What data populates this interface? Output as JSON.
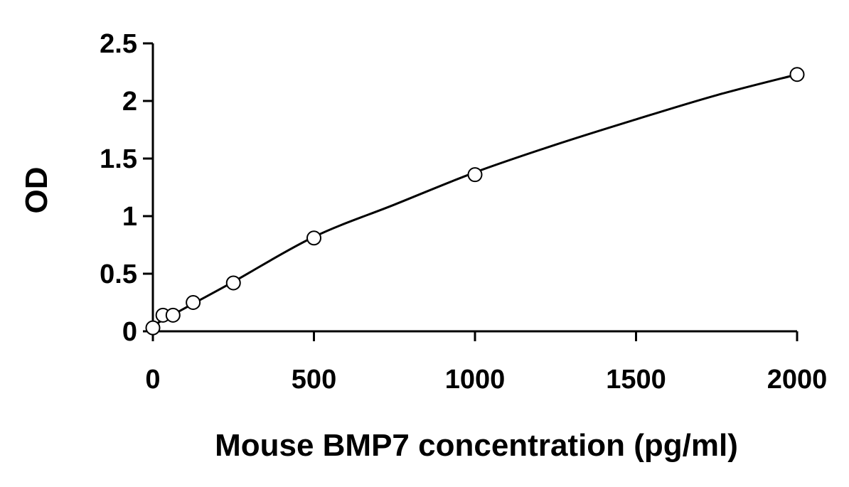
{
  "chart_data": {
    "type": "scatter",
    "title": "",
    "xlabel": "Mouse BMP7 concentration (pg/ml)",
    "ylabel": "OD",
    "xlim": [
      0,
      2000
    ],
    "ylim": [
      0,
      2.5
    ],
    "x_ticks": [
      "0",
      "500",
      "1000",
      "1500",
      "2000"
    ],
    "y_ticks": [
      "0",
      "0.5",
      "1",
      "1.5",
      "2",
      "2.5"
    ],
    "grid": false,
    "legend": "none",
    "series": [
      {
        "marker": "open-circle",
        "x": [
          0,
          31.25,
          62.5,
          125,
          250,
          500,
          1000,
          2000
        ],
        "y": [
          0.03,
          0.14,
          0.14,
          0.25,
          0.42,
          0.81,
          1.36,
          2.23
        ]
      }
    ],
    "fit_curve": {
      "style": "smooth-line",
      "color": "#000000",
      "x": [
        0,
        125,
        250,
        500,
        750,
        1000,
        1250,
        1500,
        1750,
        2000
      ],
      "y": [
        0.05,
        0.24,
        0.43,
        0.82,
        1.1,
        1.38,
        1.62,
        1.84,
        2.05,
        2.23
      ]
    }
  }
}
